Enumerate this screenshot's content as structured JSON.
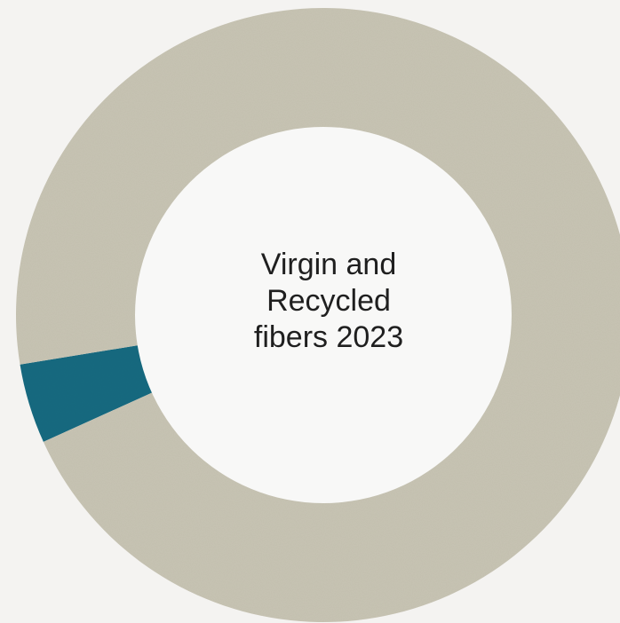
{
  "chart_data": {
    "type": "pie",
    "style": "donut",
    "center_text_lines": [
      "Virgin and",
      "Recycled",
      "fibers 2023"
    ],
    "slices": [
      {
        "value": 95.8,
        "color": "#c8c4b4"
      },
      {
        "value": 4.2,
        "color": "#1d6a80"
      }
    ]
  },
  "colors": {
    "background": "#f4f3f1",
    "hole": "#f8f8f7",
    "text": "#1f1f1f"
  }
}
